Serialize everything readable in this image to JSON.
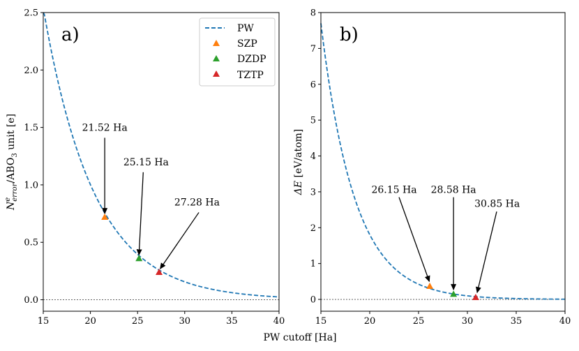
{
  "shared_xlabel": "PW cutoff [Ha]",
  "legend": [
    {
      "label": "PW",
      "kind": "line",
      "color": "#1f77b4"
    },
    {
      "label": "SZP",
      "kind": "marker",
      "color": "#ff7f0e"
    },
    {
      "label": "DZDP",
      "kind": "marker",
      "color": "#2ca02c"
    },
    {
      "label": "TZTP",
      "kind": "marker",
      "color": "#d62728"
    }
  ],
  "chart_data": [
    {
      "type": "line",
      "panel_label": "a)",
      "ylabel": "N_error^e / ABO3 unit [e]",
      "ylabel_parts": {
        "base": "N",
        "sup": "e",
        "sub": "error",
        "mid": "/ABO",
        "sub2": "3",
        "tail": " unit [e]"
      },
      "xlim": [
        15,
        40
      ],
      "ylim": [
        -0.1,
        2.5
      ],
      "xticks": [
        "15",
        "20",
        "25",
        "30",
        "35",
        "40"
      ],
      "yticks": [
        "0.0",
        "0.5",
        "1.0",
        "1.5",
        "2.0",
        "2.5"
      ],
      "curve": {
        "name": "PW",
        "x0": 15,
        "x1": 40,
        "y0": 2.54,
        "decay": 0.186,
        "asymptote": 0.0,
        "style": "dashed"
      },
      "points": [
        {
          "name": "SZP",
          "x": 21.52,
          "y": 0.72,
          "color": "#ff7f0e",
          "label": "21.52 Ha"
        },
        {
          "name": "DZDP",
          "x": 25.15,
          "y": 0.36,
          "color": "#2ca02c",
          "label": "25.15 Ha"
        },
        {
          "name": "TZTP",
          "x": 27.28,
          "y": 0.24,
          "color": "#d62728",
          "label": "27.28 Ha"
        }
      ],
      "annotations": [
        {
          "text": "21.52 Ha",
          "tx": 21.52,
          "ty": 1.47,
          "ax0": 21.52,
          "ay0": 1.41,
          "ax1": 21.52,
          "ay1": 0.75
        },
        {
          "text": "25.15 Ha",
          "tx": 25.9,
          "ty": 1.17,
          "ax0": 25.6,
          "ay0": 1.11,
          "ax1": 25.15,
          "ay1": 0.39
        },
        {
          "text": "27.28 Ha",
          "tx": 31.3,
          "ty": 0.82,
          "ax0": 31.5,
          "ay0": 0.76,
          "ax1": 27.4,
          "ay1": 0.27
        }
      ]
    },
    {
      "type": "line",
      "panel_label": "b)",
      "ylabel": "ΔE [eV/atom]",
      "ylabel_parts": {
        "base": "ΔE",
        "tail": " [eV/atom]"
      },
      "xlim": [
        15,
        40
      ],
      "ylim": [
        -0.33,
        8
      ],
      "xticks": [
        "15",
        "20",
        "25",
        "30",
        "35",
        "40"
      ],
      "yticks": [
        "0",
        "1",
        "2",
        "3",
        "4",
        "5",
        "6",
        "7",
        "8"
      ],
      "curve": {
        "name": "PW",
        "x0": 15,
        "x1": 40,
        "y0": 7.7,
        "decay": 0.29,
        "asymptote": 0.0,
        "style": "dashed"
      },
      "points": [
        {
          "name": "SZP",
          "x": 26.15,
          "y": 0.37,
          "color": "#ff7f0e",
          "label": "26.15 Ha"
        },
        {
          "name": "DZDP",
          "x": 28.58,
          "y": 0.15,
          "color": "#2ca02c",
          "label": "28.58 Ha"
        },
        {
          "name": "TZTP",
          "x": 30.85,
          "y": 0.06,
          "color": "#d62728",
          "label": "30.85 Ha"
        }
      ],
      "annotations": [
        {
          "text": "26.15 Ha",
          "tx": 22.5,
          "ty": 2.97,
          "ax0": 23.0,
          "ay0": 2.85,
          "ax1": 26.1,
          "ay1": 0.5
        },
        {
          "text": "28.58 Ha",
          "tx": 28.58,
          "ty": 2.97,
          "ax0": 28.58,
          "ay0": 2.85,
          "ax1": 28.58,
          "ay1": 0.27
        },
        {
          "text": "30.85 Ha",
          "tx": 33.05,
          "ty": 2.58,
          "ax0": 33.0,
          "ay0": 2.45,
          "ax1": 31.0,
          "ay1": 0.19
        }
      ]
    }
  ]
}
